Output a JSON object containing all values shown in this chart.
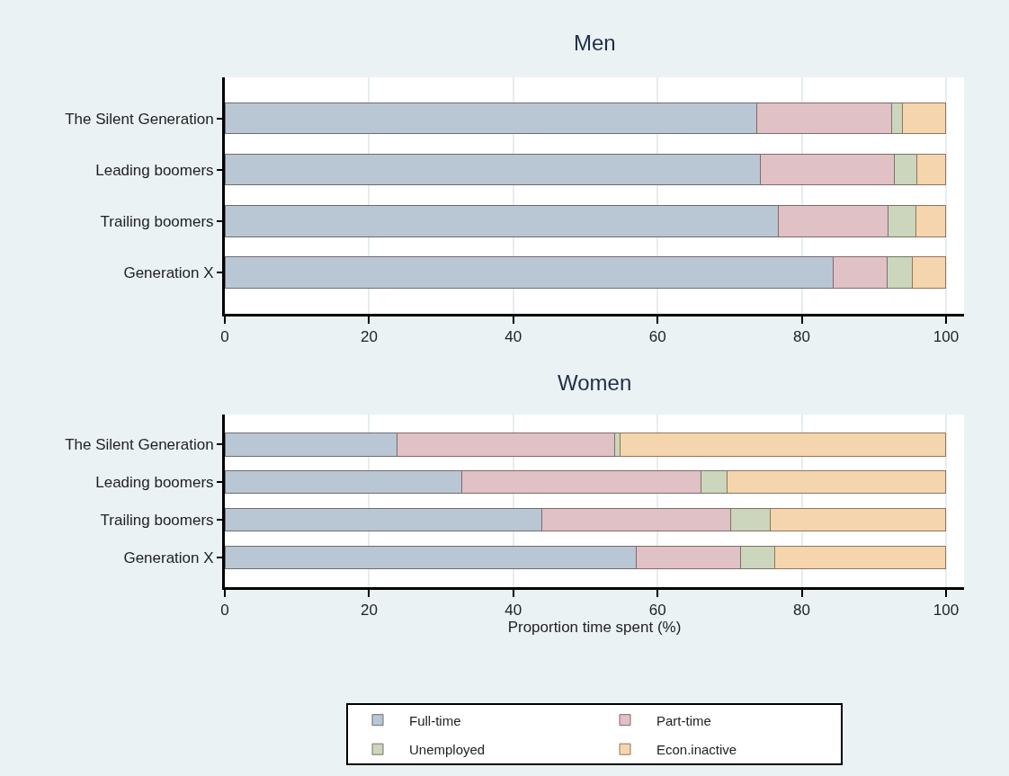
{
  "chart_data": [
    {
      "type": "bar",
      "title": "Men",
      "orientation": "horizontal",
      "stacked": true,
      "categories": [
        "The Silent Generation",
        "Leading boomers",
        "Trailing boomers",
        "Generation X"
      ],
      "series": [
        {
          "name": "Full-time",
          "color": "#b8c7d3",
          "values": [
            73.7,
            74.3,
            76.7,
            84.4
          ]
        },
        {
          "name": "Part-time",
          "color": "#e0c1c5",
          "values": [
            18.8,
            18.5,
            15.3,
            7.5
          ]
        },
        {
          "name": "Unemployed",
          "color": "#cbd6bc",
          "values": [
            1.5,
            3.1,
            3.8,
            3.4
          ]
        },
        {
          "name": "Econ.inactive",
          "color": "#f5d5ad",
          "values": [
            6.0,
            4.1,
            4.2,
            4.7
          ]
        }
      ],
      "xlim": [
        0,
        102.5
      ],
      "xticks": [
        0,
        20,
        40,
        60,
        80,
        100
      ],
      "grid": "x",
      "legend": "bottom"
    },
    {
      "type": "bar",
      "title": "Women",
      "xlabel": "Proportion time spent (%)",
      "orientation": "horizontal",
      "stacked": true,
      "categories": [
        "The Silent Generation",
        "Leading boomers",
        "Trailing boomers",
        "Generation X"
      ],
      "series": [
        {
          "name": "Full-time",
          "color": "#b8c7d3",
          "values": [
            23.9,
            32.8,
            44.0,
            57.0
          ]
        },
        {
          "name": "Part-time",
          "color": "#e0c1c5",
          "values": [
            30.2,
            33.2,
            26.2,
            14.5
          ]
        },
        {
          "name": "Unemployed",
          "color": "#cbd6bc",
          "values": [
            0.7,
            3.7,
            5.4,
            4.7
          ]
        },
        {
          "name": "Econ.inactive",
          "color": "#f5d5ad",
          "values": [
            45.2,
            30.3,
            24.4,
            23.8
          ]
        }
      ],
      "xlim": [
        0,
        102.5
      ],
      "xticks": [
        0,
        20,
        40,
        60,
        80,
        100
      ],
      "grid": "x",
      "legend": "bottom"
    }
  ]
}
